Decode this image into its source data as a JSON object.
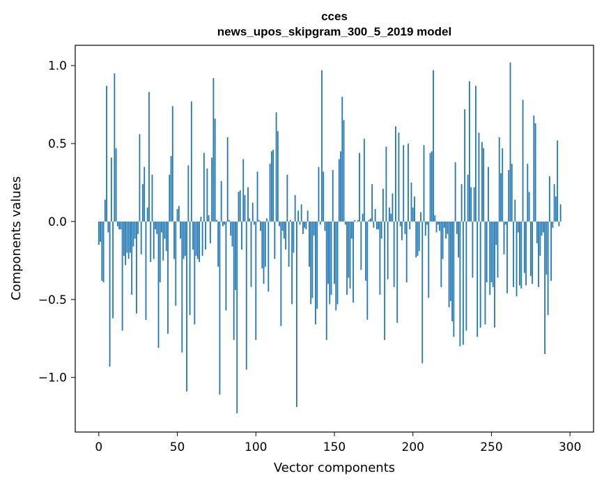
{
  "chart_data": {
    "type": "bar",
    "title_line1": "cces",
    "title_line2": "news_upos_skipgram_300_5_2019 model",
    "xlabel": "Vector components",
    "ylabel": "Components values",
    "xlim": [
      -15,
      315
    ],
    "ylim": [
      -1.35,
      1.13
    ],
    "xticks": [
      0,
      50,
      100,
      150,
      200,
      250,
      300
    ],
    "xtick_labels": [
      "0",
      "50",
      "100",
      "150",
      "200",
      "250",
      "300"
    ],
    "yticks": [
      -1.0,
      -0.5,
      0.0,
      0.5,
      1.0
    ],
    "ytick_labels": [
      "−1.0",
      "−0.5",
      "0.0",
      "0.5",
      "1.0"
    ],
    "bar_color": "#1f77b4",
    "grid": false,
    "values": [
      -0.15,
      -0.13,
      -0.38,
      -0.39,
      0.14,
      0.87,
      -0.07,
      -0.93,
      0.41,
      -0.62,
      0.95,
      0.47,
      -0.03,
      -0.05,
      -0.05,
      -0.7,
      -0.22,
      -0.28,
      -0.2,
      -0.24,
      -0.2,
      -0.47,
      -0.16,
      -0.11,
      -0.59,
      -0.08,
      0.56,
      -0.21,
      0.24,
      0.35,
      -0.63,
      0.09,
      0.83,
      -0.26,
      0.3,
      -0.24,
      -0.05,
      -0.08,
      -0.81,
      -0.39,
      -0.07,
      -0.25,
      -0.11,
      -0.19,
      -0.72,
      0.3,
      0.42,
      0.74,
      -0.24,
      -0.54,
      0.08,
      0.1,
      -0.11,
      -0.84,
      -0.24,
      -0.22,
      -1.09,
      0.36,
      -0.6,
      0.77,
      -0.18,
      -0.66,
      -0.22,
      -0.24,
      -0.26,
      0.03,
      -0.22,
      0.44,
      -0.18,
      0.34,
      0.04,
      -0.14,
      0.41,
      0.92,
      0.66,
      0.01,
      -0.29,
      -1.11,
      0.26,
      -0.03,
      -0.02,
      -0.57,
      0.54,
      0.01,
      -0.09,
      -0.16,
      -0.76,
      -0.44,
      -1.23,
      0.19,
      0.2,
      -0.18,
      0.4,
      0.17,
      -0.95,
      0.22,
      0.02,
      -0.42,
      0.12,
      -0.02,
      -0.76,
      0.32,
      0.01,
      -0.06,
      -0.3,
      -0.4,
      -0.29,
      0.02,
      -0.45,
      0.37,
      0.45,
      0.46,
      -0.24,
      0.7,
      0.58,
      -0.03,
      -0.67,
      -0.06,
      -0.11,
      -0.18,
      0.3,
      -0.29,
      0.01,
      -0.53,
      -0.2,
      0.17,
      -1.19,
      0.07,
      -0.02,
      0.11,
      -0.08,
      -0.04,
      -0.05,
      0.07,
      -0.29,
      -0.53,
      -0.49,
      -0.09,
      -0.66,
      -0.56,
      0.35,
      -0.02,
      0.97,
      0.32,
      -0.06,
      -0.76,
      -0.4,
      -0.53,
      -0.47,
      0.33,
      -0.4,
      -0.57,
      -0.53,
      0.4,
      0.45,
      0.8,
      0.65,
      -0.02,
      -0.47,
      -0.36,
      -0.43,
      -0.11,
      -0.52,
      0.01,
      0.0,
      0.01,
      0.44,
      -0.31,
      0.05,
      0.53,
      -0.38,
      -0.63,
      0.01,
      0.02,
      0.24,
      -0.04,
      0.08,
      -0.05,
      -0.05,
      -0.47,
      -0.11,
      0.21,
      -0.76,
      0.48,
      -0.37,
      0.09,
      0.05,
      0.18,
      -0.42,
      0.61,
      -0.65,
      0.57,
      -0.03,
      -0.12,
      0.49,
      -0.08,
      -0.39,
      0.5,
      -0.05,
      0.25,
      0.09,
      0.16,
      -0.23,
      -0.22,
      -0.19,
      0.06,
      -0.91,
      0.49,
      -0.09,
      -0.02,
      -0.49,
      0.44,
      0.45,
      0.97,
      0.04,
      -0.07,
      -0.02,
      -0.06,
      -0.42,
      -0.24,
      -0.04,
      -0.11,
      -0.08,
      -0.55,
      -0.51,
      -0.64,
      -0.74,
      0.38,
      -0.08,
      -0.23,
      -0.8,
      0.24,
      -0.79,
      0.72,
      -0.7,
      0.3,
      0.9,
      0.22,
      -0.36,
      0.22,
      0.87,
      -0.74,
      0.57,
      -0.68,
      0.51,
      0.47,
      -0.66,
      -0.39,
      0.35,
      -0.47,
      -0.39,
      -0.42,
      -0.68,
      -0.15,
      -0.36,
      0.54,
      0.31,
      0.47,
      -0.21,
      -0.02,
      -0.46,
      0.33,
      1.02,
      0.37,
      -0.42,
      0.14,
      -0.48,
      -0.07,
      -0.41,
      -0.43,
      0.78,
      -0.33,
      -0.41,
      0.37,
      0.19,
      -0.35,
      -0.4,
      0.68,
      0.63,
      -0.14,
      -0.42,
      -0.22,
      -0.09,
      -0.07,
      -0.85,
      -0.34,
      -0.6,
      0.29,
      -0.38,
      -0.04,
      0.24,
      0.16,
      0.52,
      -0.03,
      0.11
    ]
  }
}
